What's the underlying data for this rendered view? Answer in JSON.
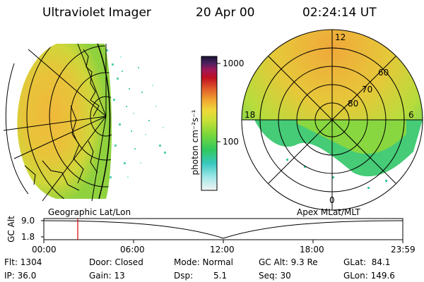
{
  "header": {
    "title": "Ultraviolet Imager",
    "date": "20 Apr 00",
    "time": "02:24:14 UT"
  },
  "colorbar": {
    "unit_label": "photon cm⁻²s⁻¹",
    "ticks": [
      "1000",
      "100"
    ]
  },
  "left_panel": {
    "caption": "Geographic Lat/Lon"
  },
  "right_panel": {
    "caption": "Apex MLat/MLT",
    "lat_labels": [
      "60",
      "70",
      "80"
    ],
    "mlt_labels": [
      "12",
      "18",
      "6",
      "0"
    ]
  },
  "altitude_plot": {
    "ylabel": "GC Alt",
    "yticks": [
      "9.0",
      "1.8"
    ],
    "xticks": [
      "00:00",
      "06:00",
      "12:00",
      "18:00",
      "23:59"
    ],
    "marker_time": "02:24"
  },
  "info": {
    "flt": "Flt: 1304",
    "ip": "IP: 36.0",
    "door": "Door: Closed",
    "gain": "Gain: 13",
    "mode": "Mode: Normal",
    "dsp_label": "Dsp:",
    "dsp_value": "5.1",
    "gcalt": "GC Alt: 9.3 Re",
    "seq": "Seq: 30",
    "glat": "GLat:  84.1",
    "glon": "GLon: 149.6"
  },
  "colors": {
    "marker": "#d40000",
    "colorbar_top": "#1a1233",
    "colorbar_bottom": "#f2f2f2"
  }
}
